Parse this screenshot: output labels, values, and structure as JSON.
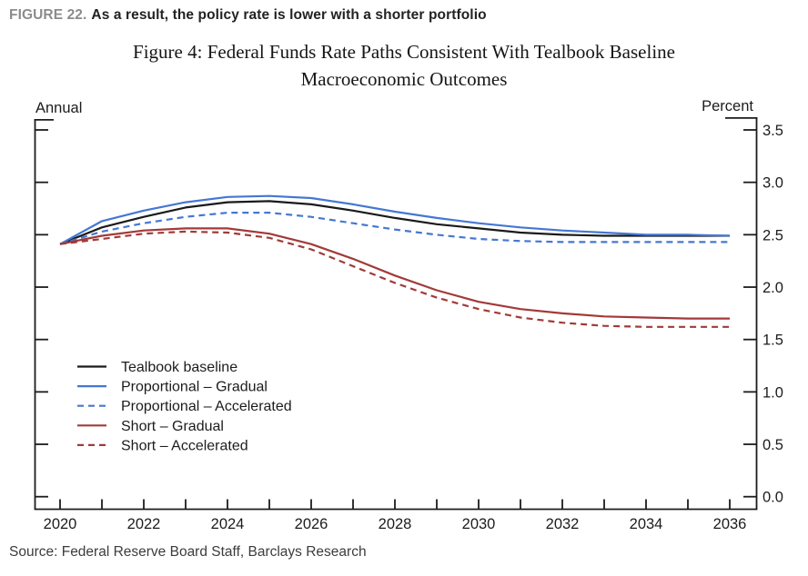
{
  "header": {
    "figure_label": "FIGURE 22.",
    "caption": "As a result, the policy rate is lower with a shorter portfolio"
  },
  "source_note": "Source: Federal Reserve Board Staff, Barclays Research",
  "colors": {
    "ink": "#1c1c1c",
    "blue": "#4577d2",
    "red": "#a13a38",
    "header_gray": "#8c8c8c"
  },
  "chart_data": {
    "type": "line",
    "title": "Figure 4: Federal Funds Rate Paths Consistent With Tealbook Baseline Macroeconomic Outcomes",
    "title_line1": "Figure 4: Federal Funds Rate Paths Consistent With Tealbook Baseline",
    "title_line2": "Macroeconomic Outcomes",
    "left_axis_label": "Annual",
    "right_axis_label": "Percent",
    "grid": false,
    "legend_position": "inside-left-middle",
    "ylim": [
      0.0,
      3.5
    ],
    "y_ticks": [
      {
        "value": 0.0,
        "label": "0.0"
      },
      {
        "value": 0.5,
        "label": "0.5"
      },
      {
        "value": 1.0,
        "label": "1.0"
      },
      {
        "value": 1.5,
        "label": "1.5"
      },
      {
        "value": 2.0,
        "label": "2.0"
      },
      {
        "value": 2.5,
        "label": "2.5"
      },
      {
        "value": 3.0,
        "label": "3.0"
      },
      {
        "value": 3.5,
        "label": "3.5"
      }
    ],
    "x_tick_years": [
      2020,
      2021,
      2022,
      2023,
      2024,
      2025,
      2026,
      2027,
      2028,
      2029,
      2030,
      2031,
      2032,
      2033,
      2034,
      2035,
      2036
    ],
    "x_label_years": [
      2020,
      2022,
      2024,
      2026,
      2028,
      2030,
      2032,
      2034,
      2036
    ],
    "years": [
      2020,
      2021,
      2022,
      2023,
      2024,
      2025,
      2026,
      2027,
      2028,
      2029,
      2030,
      2031,
      2032,
      2033,
      2034,
      2035,
      2036
    ],
    "series": [
      {
        "name": "Tealbook baseline",
        "color": "#1a1a1a",
        "line_style": "solid",
        "values": [
          2.41,
          2.57,
          2.67,
          2.76,
          2.81,
          2.82,
          2.79,
          2.73,
          2.66,
          2.6,
          2.56,
          2.52,
          2.5,
          2.49,
          2.49,
          2.49,
          2.49
        ]
      },
      {
        "name": "Proportional – Gradual",
        "color": "#4577d2",
        "line_style": "solid",
        "values": [
          2.41,
          2.63,
          2.73,
          2.81,
          2.86,
          2.87,
          2.85,
          2.79,
          2.72,
          2.66,
          2.61,
          2.57,
          2.54,
          2.52,
          2.5,
          2.5,
          2.49
        ]
      },
      {
        "name": "Proportional – Accelerated",
        "color": "#4577d2",
        "line_style": "dashed",
        "values": [
          2.41,
          2.53,
          2.61,
          2.67,
          2.71,
          2.71,
          2.67,
          2.61,
          2.55,
          2.5,
          2.46,
          2.44,
          2.43,
          2.43,
          2.43,
          2.43,
          2.43
        ]
      },
      {
        "name": "Short – Gradual",
        "color": "#a13a38",
        "line_style": "solid",
        "values": [
          2.41,
          2.49,
          2.54,
          2.56,
          2.56,
          2.51,
          2.41,
          2.27,
          2.11,
          1.97,
          1.86,
          1.79,
          1.75,
          1.72,
          1.71,
          1.7,
          1.7
        ]
      },
      {
        "name": "Short – Accelerated",
        "color": "#a13a38",
        "line_style": "dashed",
        "values": [
          2.41,
          2.46,
          2.51,
          2.53,
          2.52,
          2.47,
          2.36,
          2.2,
          2.04,
          1.9,
          1.79,
          1.71,
          1.66,
          1.63,
          1.62,
          1.62,
          1.62
        ]
      }
    ]
  }
}
